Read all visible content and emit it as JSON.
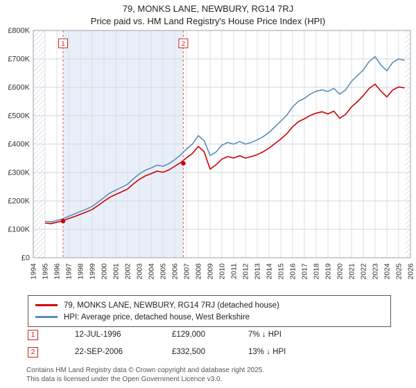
{
  "title": {
    "line1": "79, MONKS LANE, NEWBURY, RG14 7RJ",
    "line2": "Price paid vs. HM Land Registry's House Price Index (HPI)"
  },
  "chart_data": {
    "type": "line",
    "x_axis": {
      "min": 1994,
      "max": 2026
    },
    "y_axis": {
      "min": 0,
      "max": 800000,
      "tick_step": 100000,
      "tick_labels": [
        "£0",
        "£100K",
        "£200K",
        "£300K",
        "£400K",
        "£500K",
        "£600K",
        "£700K",
        "£800K"
      ]
    },
    "x": [
      1995,
      1995.5,
      1996,
      1996.5,
      1997,
      1997.5,
      1998,
      1998.5,
      1999,
      1999.5,
      2000,
      2000.5,
      2001,
      2001.5,
      2002,
      2002.5,
      2003,
      2003.5,
      2004,
      2004.5,
      2005,
      2005.5,
      2006,
      2006.5,
      2007,
      2007.5,
      2008,
      2008.5,
      2009,
      2009.5,
      2010,
      2010.5,
      2011,
      2011.5,
      2012,
      2012.5,
      2013,
      2013.5,
      2014,
      2014.5,
      2015,
      2015.5,
      2016,
      2016.5,
      2017,
      2017.5,
      2018,
      2018.5,
      2019,
      2019.5,
      2020,
      2020.5,
      2021,
      2021.5,
      2022,
      2022.5,
      2023,
      2023.5,
      2024,
      2024.5,
      2025,
      2025.5
    ],
    "series": [
      {
        "name": "79, MONKS LANE, NEWBURY, RG14 7RJ (detached house)",
        "color": "#cc0000",
        "values": [
          122000,
          120000,
          125000,
          130000,
          138000,
          145000,
          153000,
          161000,
          170000,
          184000,
          199000,
          213000,
          223000,
          232000,
          242000,
          260000,
          276000,
          288000,
          296000,
          305000,
          301000,
          309000,
          322000,
          335000,
          352000,
          367000,
          392000,
          373000,
          312000,
          327000,
          347000,
          356000,
          351000,
          359000,
          351000,
          356000,
          363000,
          373000,
          386000,
          402000,
          418000,
          436000,
          461000,
          479000,
          489000,
          501000,
          509000,
          514000,
          506000,
          516000,
          491000,
          505000,
          531000,
          549000,
          571000,
          596000,
          611000,
          586000,
          566000,
          591000,
          601000,
          598000
        ]
      },
      {
        "name": "HPI: Average price, detached house, West Berkshire",
        "color": "#5b8db8",
        "values": [
          128000,
          126000,
          131000,
          137000,
          146000,
          154000,
          163000,
          171000,
          181000,
          196000,
          212000,
          228000,
          238000,
          248000,
          259000,
          278000,
          295000,
          308000,
          316000,
          326000,
          322000,
          331000,
          345000,
          362000,
          383000,
          400000,
          430000,
          412000,
          360000,
          372000,
          396000,
          406000,
          400000,
          409000,
          400000,
          406000,
          415000,
          426000,
          441000,
          461000,
          481000,
          501000,
          531000,
          551000,
          561000,
          576000,
          586000,
          591000,
          585000,
          596000,
          576000,
          591000,
          621000,
          641000,
          661000,
          691000,
          708000,
          678000,
          658000,
          688000,
          700000,
          695000
        ]
      }
    ],
    "sale_markers": [
      {
        "label": "1",
        "x": 1996.53,
        "y": 129000
      },
      {
        "label": "2",
        "x": 2006.73,
        "y": 332500
      }
    ],
    "shaded_region": {
      "from": 1996.53,
      "to": 2006.73
    },
    "hatched_regions": [
      {
        "from": 1994,
        "to": 1995.05
      },
      {
        "from": 2025.55,
        "to": 2026
      }
    ],
    "colors": {
      "shading": "#e9eff9",
      "sale_line": "#e05555",
      "sale_box": "#cc2222",
      "sale_point": "#cc0000"
    }
  },
  "legend": {
    "items": [
      {
        "label": "79, MONKS LANE, NEWBURY, RG14 7RJ (detached house)"
      },
      {
        "label": "HPI: Average price, detached house, West Berkshire"
      }
    ]
  },
  "transactions": [
    {
      "num": "1",
      "date": "12-JUL-1996",
      "price": "£129,000",
      "hpi": "7% ↓ HPI"
    },
    {
      "num": "2",
      "date": "22-SEP-2006",
      "price": "£332,500",
      "hpi": "13% ↓ HPI"
    }
  ],
  "footer": {
    "line1": "Contains HM Land Registry data © Crown copyright and database right 2025.",
    "line2": "This data is licensed under the Open Government Licence v3.0."
  }
}
